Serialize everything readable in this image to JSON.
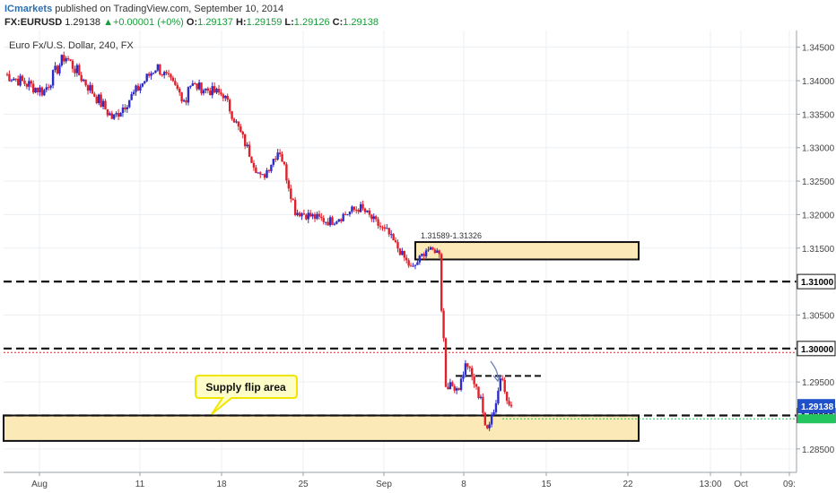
{
  "header": {
    "publisher": "ICmarkets",
    "published_text": " published on TradingView.com, September 10, 2014",
    "symbol": "FX:EURUSD",
    "last": "1.29138",
    "change": "+0.00001 (+0%)",
    "o_label": "O:",
    "o_value": "1.29137",
    "h_label": "H:",
    "h_value": "1.29159",
    "l_label": "L:",
    "l_value": "1.29126",
    "c_label": "C:",
    "c_value": "1.29138",
    "up_arrow": "▲"
  },
  "colors": {
    "bull": "#2c2cc8",
    "bear": "#e0202a",
    "zone_fill": "#fbe9b8",
    "level_line": "#111111",
    "callout_fill": "#fffec8",
    "callout_border": "#f2e600",
    "last_price_bg": "#1f4fc9",
    "support_green": "#22c55e"
  },
  "chart_data": {
    "type": "candlestick",
    "title": "Euro Fx/U.S. Dollar, 240, FX",
    "ylim": [
      1.2815,
      1.3475
    ],
    "y_ticks": [
      "1.34500",
      "1.34000",
      "1.33500",
      "1.33000",
      "1.32500",
      "1.32000",
      "1.31500",
      "1.31000",
      "1.30500",
      "1.30000",
      "1.29500",
      "1.29000",
      "1.28500"
    ],
    "x_ticks": [
      "Aug",
      "11",
      "18",
      "25",
      "Sep",
      "8",
      "15",
      "22",
      "13:00",
      "Oct",
      "09:"
    ],
    "levels": [
      {
        "price": 1.31,
        "label": "1.31000"
      },
      {
        "price": 1.3,
        "label": "1.30000"
      },
      {
        "price": 1.29,
        "label": "1.29000"
      }
    ],
    "last_price": {
      "price": 1.29138,
      "label": "1.29138"
    },
    "zones": [
      {
        "label": "1.31589-1.31326",
        "top": 1.3159,
        "bottom": 1.3133
      },
      {
        "label": "",
        "top": 1.29,
        "bottom": 1.2862
      }
    ],
    "annotation": "Supply flip area",
    "series": [
      {
        "segments": [
          {
            "n": 18,
            "start": 1.341,
            "end": 1.3385,
            "vol": 0.001
          },
          {
            "n": 10,
            "start": 1.3385,
            "end": 1.3435,
            "vol": 0.001
          },
          {
            "n": 22,
            "start": 1.3435,
            "end": 1.3345,
            "vol": 0.001
          },
          {
            "n": 20,
            "start": 1.3345,
            "end": 1.342,
            "vol": 0.0009
          },
          {
            "n": 14,
            "start": 1.342,
            "end": 1.337,
            "vol": 0.0009
          },
          {
            "n": 16,
            "start": 1.3395,
            "end": 1.338,
            "vol": 0.0008
          },
          {
            "n": 18,
            "start": 1.338,
            "end": 1.3255,
            "vol": 0.0008
          },
          {
            "n": 8,
            "start": 1.3255,
            "end": 1.3295,
            "vol": 0.0008
          },
          {
            "n": 7,
            "start": 1.3295,
            "end": 1.322,
            "vol": 0.0009
          },
          {
            "n": 16,
            "start": 1.3205,
            "end": 1.319,
            "vol": 0.0007
          },
          {
            "n": 14,
            "start": 1.319,
            "end": 1.321,
            "vol": 0.0008
          },
          {
            "n": 12,
            "start": 1.321,
            "end": 1.3175,
            "vol": 0.0007
          },
          {
            "n": 12,
            "start": 1.3175,
            "end": 1.312,
            "vol": 0.0006
          },
          {
            "n": 7,
            "start": 1.312,
            "end": 1.3148,
            "vol": 0.0006
          },
          {
            "n": 5,
            "start": 1.3148,
            "end": 1.3145,
            "vol": 0.0004
          },
          {
            "n": 1,
            "start": 1.3145,
            "end": 1.306,
            "vol": 0.0006
          },
          {
            "n": 1,
            "start": 1.306,
            "end": 1.3015,
            "vol": 0.0006
          },
          {
            "n": 2,
            "start": 1.3015,
            "end": 1.2945,
            "vol": 0.0006
          },
          {
            "n": 5,
            "start": 1.2945,
            "end": 1.2942,
            "vol": 0.0006
          },
          {
            "n": 4,
            "start": 1.2942,
            "end": 1.2975,
            "vol": 0.0006
          },
          {
            "n": 6,
            "start": 1.2975,
            "end": 1.293,
            "vol": 0.0006
          },
          {
            "n": 3,
            "start": 1.293,
            "end": 1.288,
            "vol": 0.0007
          },
          {
            "n": 3,
            "start": 1.288,
            "end": 1.2905,
            "vol": 0.0007
          },
          {
            "n": 4,
            "start": 1.2905,
            "end": 1.2955,
            "vol": 0.0007
          },
          {
            "n": 4,
            "start": 1.2955,
            "end": 1.2913,
            "vol": 0.0006
          }
        ]
      }
    ]
  }
}
